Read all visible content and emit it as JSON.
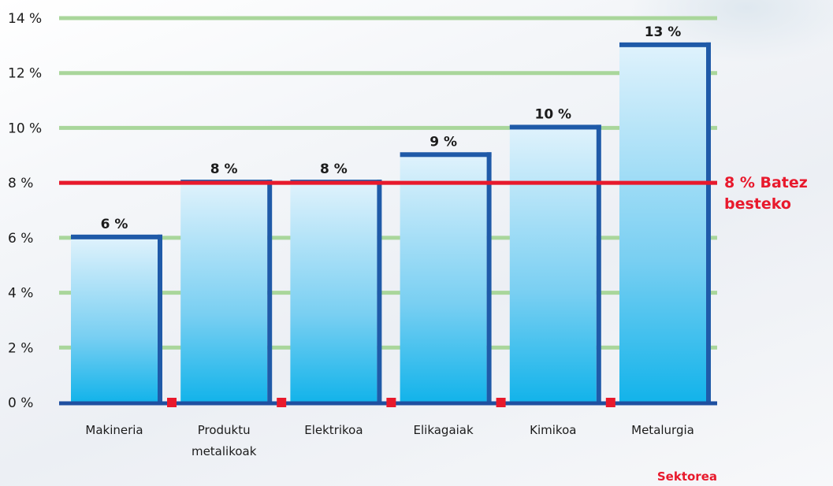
{
  "chart_data": {
    "type": "bar",
    "categories": [
      "Makineria",
      "Produktu metalikoak",
      "Elektrikoa",
      "Elikagaiak",
      "Kimikoa",
      "Metalurgia"
    ],
    "category_lines": [
      [
        "Makineria"
      ],
      [
        "Produktu",
        "metalikoak"
      ],
      [
        "Elektrikoa"
      ],
      [
        "Elikagaiak"
      ],
      [
        "Kimikoa"
      ],
      [
        "Metalurgia"
      ]
    ],
    "values": [
      6,
      8,
      8,
      9,
      10,
      13
    ],
    "value_labels": [
      "6 %",
      "8 %",
      "8 %",
      "9 %",
      "10 %",
      "13 %"
    ],
    "ylim": [
      0,
      14
    ],
    "yticks": [
      0,
      2,
      4,
      6,
      8,
      10,
      12,
      14
    ],
    "ytick_labels": [
      "0 %",
      "2 %",
      "4 %",
      "6 %",
      "8 %",
      "10 %",
      "12 %",
      "14 %"
    ],
    "xlabel": "Sektorea",
    "ylabel": "",
    "grid": true,
    "reference_line": {
      "value": 8,
      "label_lines": [
        "8 % Batez",
        "besteko"
      ]
    },
    "colors": {
      "bar_top": "#d8eefa",
      "bar_bottom": "#19b6ea",
      "bar_edge": "#1f5aa8",
      "grid": "#a9d69b",
      "axis": "#1f4fa0",
      "reference": "#e8192c",
      "marker": "#e8192c"
    }
  }
}
